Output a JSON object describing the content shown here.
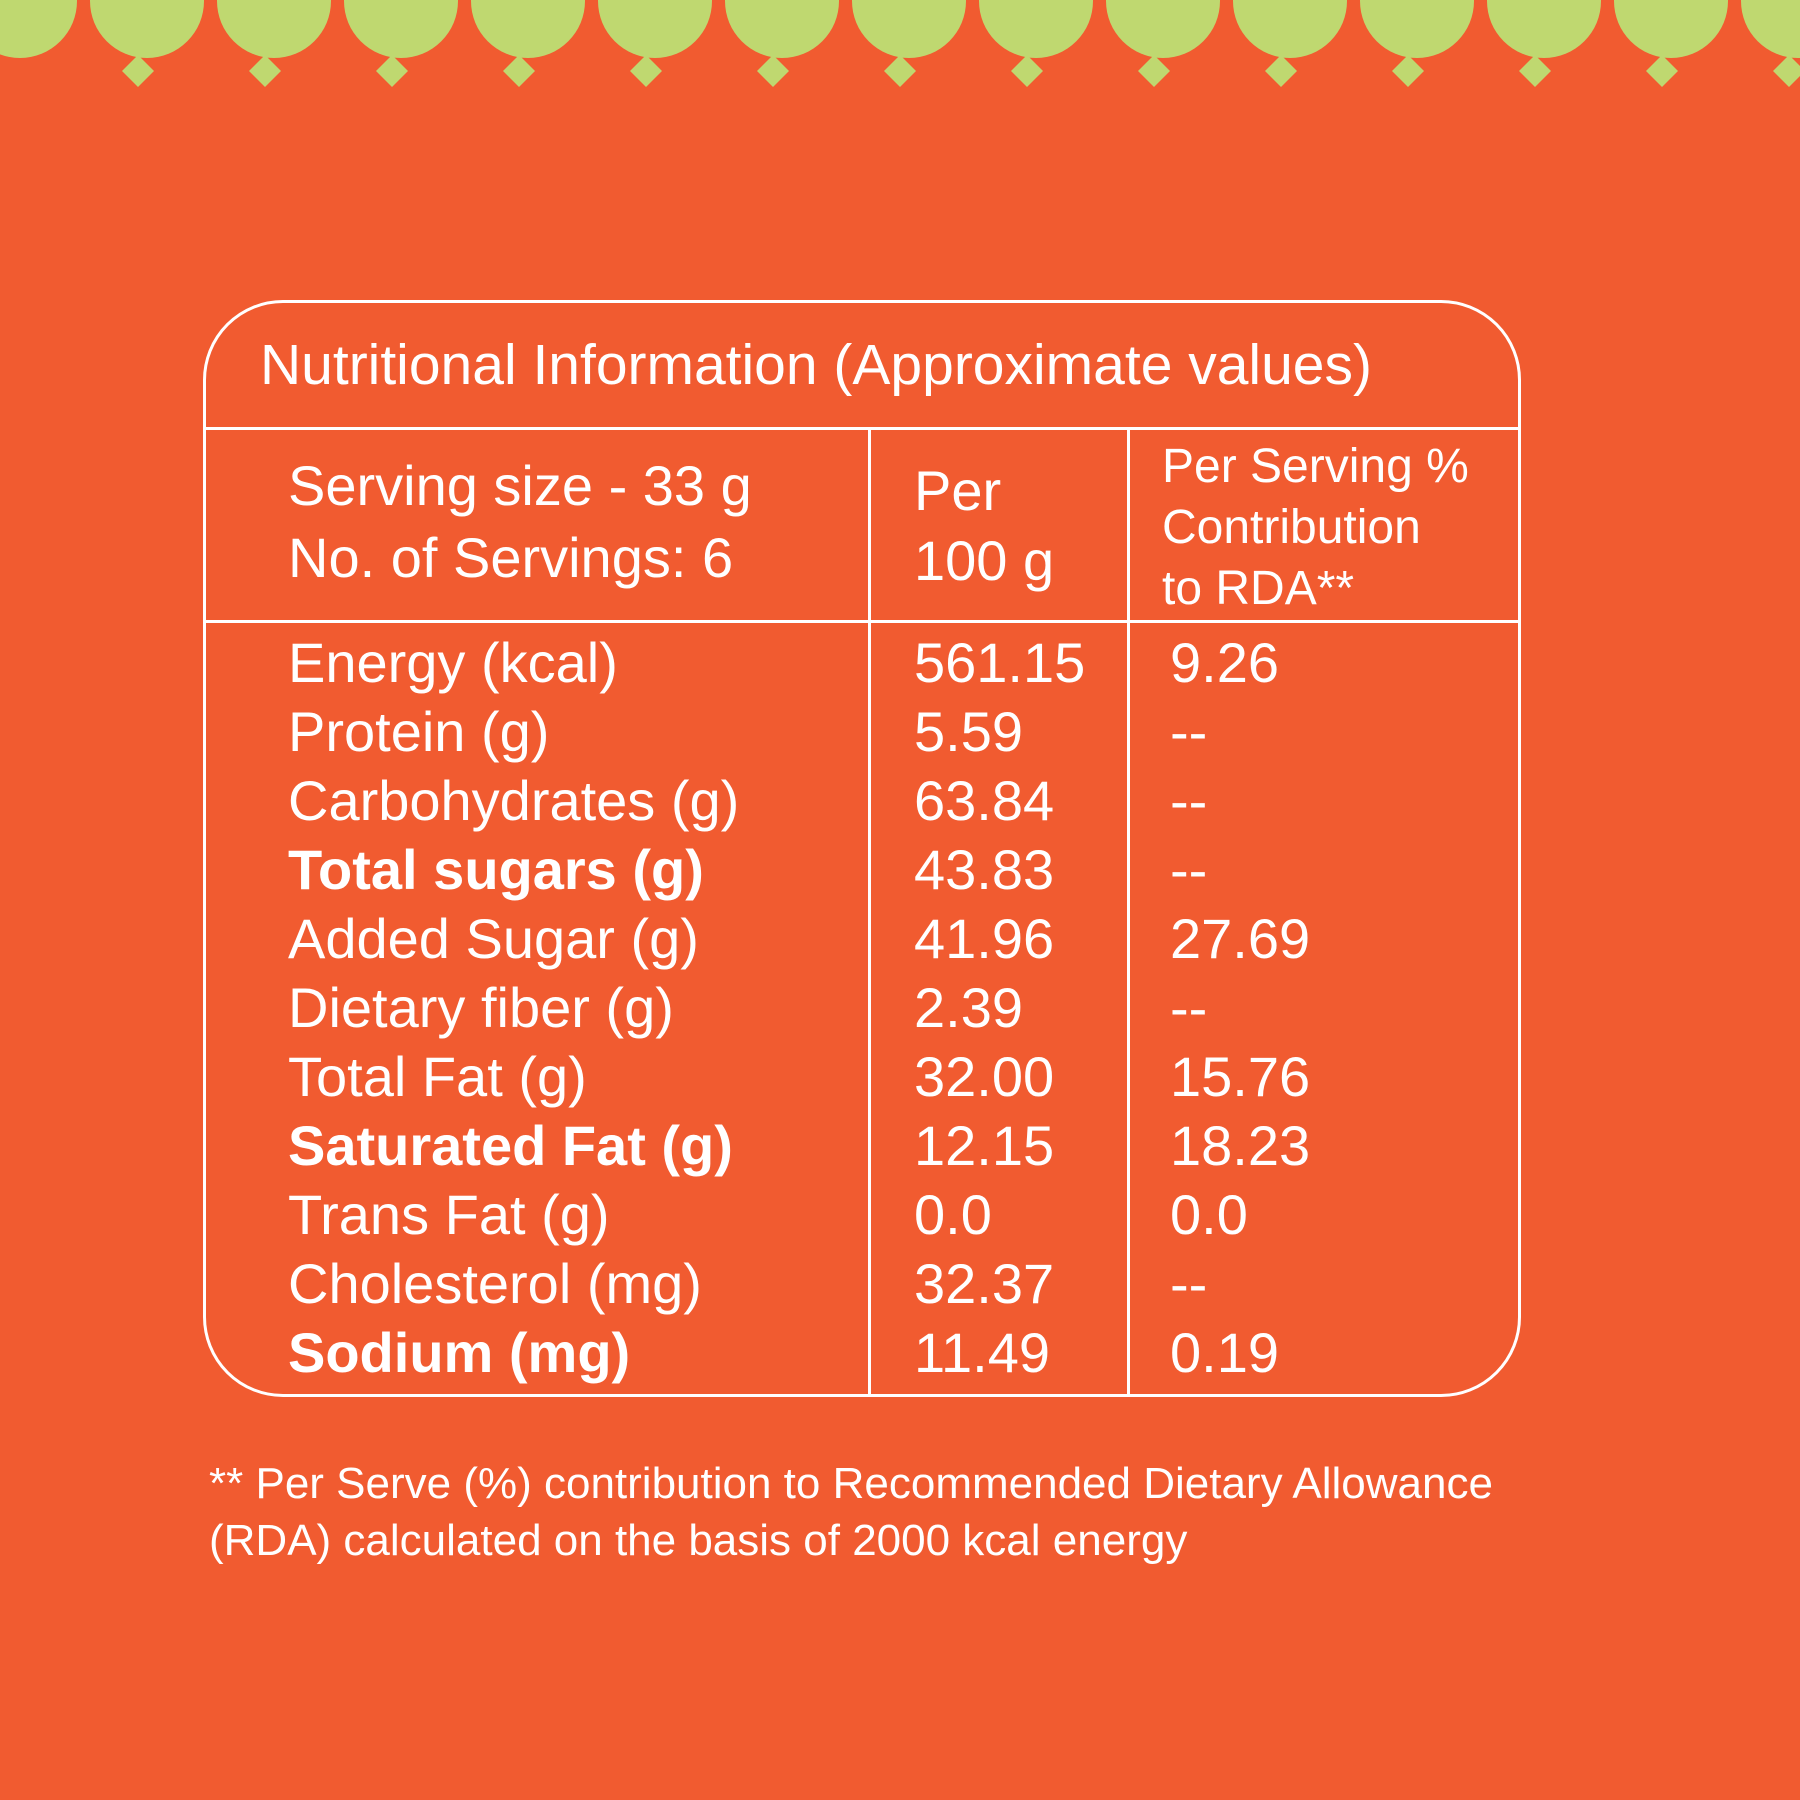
{
  "colors": {
    "background": "#F15B30",
    "scallop": "#BFD870",
    "text": "#FFFFFF"
  },
  "table": {
    "title": "Nutritional Information (Approximate values)",
    "serving_size": "Serving size - 33 g",
    "servings_count": "No. of Servings: 6",
    "col_per100_line1": "Per",
    "col_per100_line2": "100 g",
    "col_rda_line1": "Per Serving %",
    "col_rda_line2": "Contribution",
    "col_rda_line3": "to RDA**",
    "rows": [
      {
        "name": "Energy (kcal)",
        "per100": "561.15",
        "rda": "9.26"
      },
      {
        "name": "Protein (g)",
        "per100": "5.59",
        "rda": "--"
      },
      {
        "name": "Carbohydrates (g)",
        "per100": "63.84",
        "rda": "--"
      },
      {
        "name": "Total sugars (g)",
        "per100": "43.83",
        "rda": "--"
      },
      {
        "name": "Added Sugar (g)",
        "per100": "41.96",
        "rda": "27.69"
      },
      {
        "name": "Dietary fiber (g)",
        "per100": "2.39",
        "rda": "--"
      },
      {
        "name": "Total Fat (g)",
        "per100": "32.00",
        "rda": "15.76"
      },
      {
        "name": "Saturated Fat (g)",
        "per100": "12.15",
        "rda": "18.23"
      },
      {
        "name": "Trans Fat (g)",
        "per100": "0.0",
        "rda": "0.0"
      },
      {
        "name": "Cholesterol (mg)",
        "per100": "32.37",
        "rda": "--"
      },
      {
        "name": "Sodium (mg)",
        "per100": "11.49",
        "rda": "0.19"
      }
    ]
  },
  "footnote": {
    "line1": "** Per Serve (%) contribution to Recommended Dietary Allowance",
    "line2": "(RDA) calculated on the basis of 2000 kcal energy"
  }
}
